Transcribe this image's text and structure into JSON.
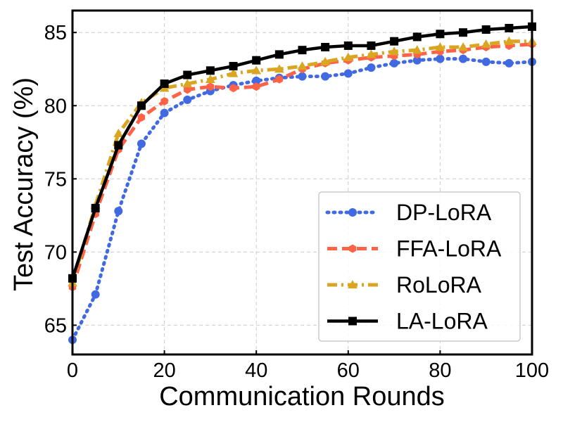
{
  "chart_data": {
    "type": "line",
    "title": "",
    "xlabel": "Communication Rounds",
    "ylabel": "Test Accuracy (%)",
    "xlim": [
      0,
      100
    ],
    "ylim": [
      63,
      86.5
    ],
    "xticks": [
      0,
      20,
      40,
      60,
      80,
      100
    ],
    "yticks": [
      65,
      70,
      75,
      80,
      85
    ],
    "grid": true,
    "legend_position": "bottom-right",
    "x": [
      0,
      5,
      10,
      15,
      20,
      25,
      30,
      35,
      40,
      45,
      50,
      55,
      60,
      65,
      70,
      75,
      80,
      85,
      90,
      95,
      100
    ],
    "series": [
      {
        "name": "DP-LoRA",
        "color": "#4169e1",
        "line_style": "dotted",
        "marker": "circle",
        "values": [
          64.0,
          67.1,
          72.8,
          77.4,
          79.5,
          80.4,
          81.0,
          81.4,
          81.7,
          81.9,
          82.0,
          82.0,
          82.2,
          82.6,
          82.9,
          83.1,
          83.2,
          83.2,
          83.0,
          82.9,
          83.0
        ]
      },
      {
        "name": "FFA-LoRA",
        "color": "#ff6347",
        "line_style": "dashed",
        "marker": "hexagon",
        "values": [
          67.6,
          72.6,
          77.0,
          79.2,
          80.3,
          81.1,
          81.3,
          81.2,
          81.3,
          81.8,
          82.5,
          82.9,
          83.1,
          83.3,
          83.4,
          83.5,
          83.7,
          83.8,
          84.0,
          84.1,
          84.2
        ]
      },
      {
        "name": "RoLoRA",
        "color": "#daa520",
        "line_style": "dashdot",
        "marker": "triangle",
        "values": [
          67.9,
          73.2,
          78.1,
          80.2,
          81.2,
          81.5,
          81.8,
          82.2,
          82.4,
          82.5,
          82.7,
          83.0,
          83.3,
          83.5,
          83.7,
          83.8,
          84.0,
          84.0,
          84.2,
          84.4,
          84.4
        ]
      },
      {
        "name": "LA-LoRA",
        "color": "#000000",
        "line_style": "solid",
        "marker": "square",
        "values": [
          68.2,
          73.0,
          77.3,
          80.0,
          81.5,
          82.1,
          82.4,
          82.7,
          83.1,
          83.5,
          83.8,
          84.0,
          84.1,
          84.1,
          84.4,
          84.7,
          84.9,
          85.0,
          85.2,
          85.3,
          85.4
        ]
      }
    ]
  }
}
